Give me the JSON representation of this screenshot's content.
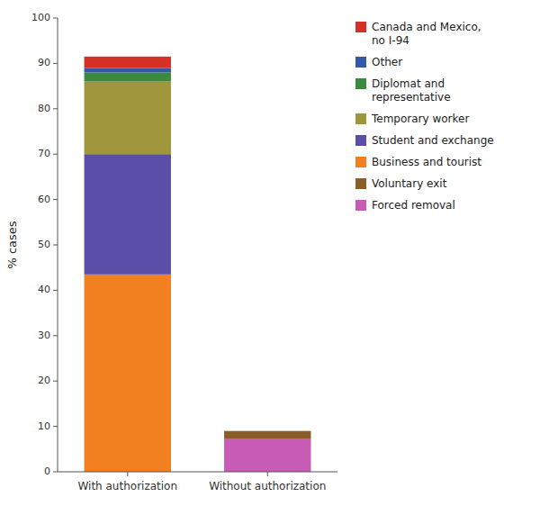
{
  "chart_data": {
    "type": "bar",
    "stacked": true,
    "categories": [
      "With authorization",
      "Without authorization"
    ],
    "series": [
      {
        "name": "Business and tourist",
        "color": "#F28020",
        "values": [
          43.5,
          0.0
        ]
      },
      {
        "name": "Student and exchange",
        "color": "#5B4EA8",
        "values": [
          26.5,
          0.0
        ]
      },
      {
        "name": "Temporary worker",
        "color": "#A0963C",
        "values": [
          16.0,
          0.0
        ]
      },
      {
        "name": "Diplomat and\nrepresentative",
        "color": "#3A8A40",
        "values": [
          2.0,
          0.0
        ]
      },
      {
        "name": "Other",
        "color": "#3557A8",
        "values": [
          1.0,
          0.0
        ]
      },
      {
        "name": "Canada and Mexico,\nno I-94",
        "color": "#D73027",
        "values": [
          2.5,
          0.0
        ]
      },
      {
        "name": "Forced removal",
        "color": "#C75BB5",
        "values": [
          0.0,
          7.2
        ]
      },
      {
        "name": "Voluntary exit",
        "color": "#8B5E28",
        "values": [
          0.0,
          1.8
        ]
      }
    ],
    "ylabel": "% cases",
    "ylim": [
      0,
      100
    ],
    "yticks": [
      0,
      10,
      20,
      30,
      40,
      50,
      60,
      70,
      80,
      90,
      100
    ],
    "grid": false,
    "legend": "right"
  }
}
